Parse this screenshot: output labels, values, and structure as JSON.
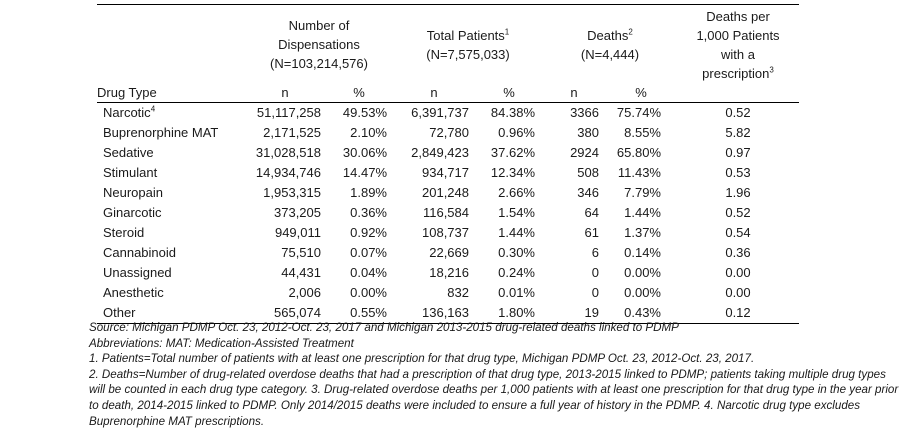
{
  "headers": {
    "drug_type": "Drug Type",
    "dispensations": [
      "Number of",
      "Dispensations",
      "(N=103,214,576)"
    ],
    "patients": [
      "Total Patients",
      "(N=7,575,033)"
    ],
    "patients_sup": "1",
    "deaths": [
      "Deaths",
      "(N=4,444)"
    ],
    "deaths_sup": "2",
    "rate": [
      "Deaths per",
      "1,000 Patients",
      "with a",
      "prescription"
    ],
    "rate_sup": "3",
    "n": "n",
    "pct": "%"
  },
  "rows": [
    {
      "drug": "Narcotic",
      "sup": "4",
      "disp_n": "51,117,258",
      "disp_pct": "49.53%",
      "pat_n": "6,391,737",
      "pat_pct": "84.38%",
      "death_n": "3366",
      "death_pct": "75.74%",
      "rate": "0.52"
    },
    {
      "drug": "Buprenorphine MAT",
      "sup": "",
      "disp_n": "2,171,525",
      "disp_pct": "2.10%",
      "pat_n": "72,780",
      "pat_pct": "0.96%",
      "death_n": "380",
      "death_pct": "8.55%",
      "rate": "5.82"
    },
    {
      "drug": "Sedative",
      "sup": "",
      "disp_n": "31,028,518",
      "disp_pct": "30.06%",
      "pat_n": "2,849,423",
      "pat_pct": "37.62%",
      "death_n": "2924",
      "death_pct": "65.80%",
      "rate": "0.97"
    },
    {
      "drug": "Stimulant",
      "sup": "",
      "disp_n": "14,934,746",
      "disp_pct": "14.47%",
      "pat_n": "934,717",
      "pat_pct": "12.34%",
      "death_n": "508",
      "death_pct": "11.43%",
      "rate": "0.53"
    },
    {
      "drug": "Neuropain",
      "sup": "",
      "disp_n": "1,953,315",
      "disp_pct": "1.89%",
      "pat_n": "201,248",
      "pat_pct": "2.66%",
      "death_n": "346",
      "death_pct": "7.79%",
      "rate": "1.96"
    },
    {
      "drug": "Ginarcotic",
      "sup": "",
      "disp_n": "373,205",
      "disp_pct": "0.36%",
      "pat_n": "116,584",
      "pat_pct": "1.54%",
      "death_n": "64",
      "death_pct": "1.44%",
      "rate": "0.52"
    },
    {
      "drug": "Steroid",
      "sup": "",
      "disp_n": "949,011",
      "disp_pct": "0.92%",
      "pat_n": "108,737",
      "pat_pct": "1.44%",
      "death_n": "61",
      "death_pct": "1.37%",
      "rate": "0.54"
    },
    {
      "drug": "Cannabinoid",
      "sup": "",
      "disp_n": "75,510",
      "disp_pct": "0.07%",
      "pat_n": "22,669",
      "pat_pct": "0.30%",
      "death_n": "6",
      "death_pct": "0.14%",
      "rate": "0.36"
    },
    {
      "drug": "Unassigned",
      "sup": "",
      "disp_n": "44,431",
      "disp_pct": "0.04%",
      "pat_n": "18,216",
      "pat_pct": "0.24%",
      "death_n": "0",
      "death_pct": "0.00%",
      "rate": "0.00"
    },
    {
      "drug": "Anesthetic",
      "sup": "",
      "disp_n": "2,006",
      "disp_pct": "0.00%",
      "pat_n": "832",
      "pat_pct": "0.01%",
      "death_n": "0",
      "death_pct": "0.00%",
      "rate": "0.00"
    },
    {
      "drug": "Other",
      "sup": "",
      "disp_n": "565,074",
      "disp_pct": "0.55%",
      "pat_n": "136,163",
      "pat_pct": "1.80%",
      "death_n": "19",
      "death_pct": "0.43%",
      "rate": "0.12"
    }
  ],
  "footnotes": {
    "source": "Source: Michigan PDMP Oct. 23, 2012-Oct. 23, 2017 and Michigan 2013-2015 drug-related deaths linked to PDMP",
    "abbreviations": "Abbreviations: MAT: Medication-Assisted Treatment",
    "note1": "1. Patients=Total number of patients with at least one prescription for that drug type, Michigan PDMP Oct. 23, 2012-Oct. 23, 2017.",
    "note2": "2. Deaths=Number of drug-related overdose deaths that had a prescription of that drug type, 2013-2015 linked to PDMP; patients taking multiple drug types will be counted in each drug type category. 3. Drug-related overdose deaths per 1,000 patients with at least one prescription for that drug type in the year prior to death, 2014-2015 linked to PDMP. Only 2014/2015 deaths were included to ensure a full year of history in the PDMP. 4. Narcotic drug type excludes Buprenorphine MAT prescriptions."
  }
}
